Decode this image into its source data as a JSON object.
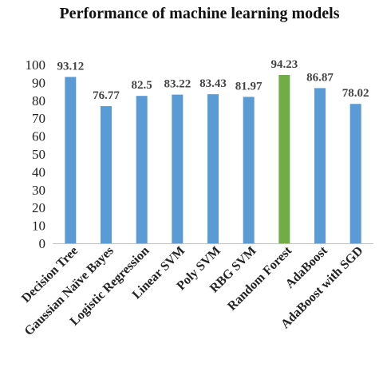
{
  "chart_data": {
    "type": "bar",
    "title": "Performance of machine learning models",
    "xlabel": "",
    "ylabel": "",
    "ylim": [
      0,
      100
    ],
    "yticks": [
      0,
      10,
      20,
      30,
      40,
      50,
      60,
      70,
      80,
      90,
      100
    ],
    "grid": false,
    "legend": "none",
    "categories": [
      "Decision Tree",
      "Gaussian Naïve Bayes",
      "Logistic Regression",
      "Linear SVM",
      "Poly SVM",
      "RBG SVM",
      "Random Forest",
      "AdaBoost",
      "AdaBoost with SGD"
    ],
    "values": [
      93.12,
      76.77,
      82.5,
      83.22,
      83.43,
      81.97,
      94.23,
      86.87,
      78.02
    ],
    "data_labels": [
      "93.12",
      "76.77",
      "82.5",
      "83.22",
      "83.43",
      "81.97",
      "94.23",
      "86.87",
      "78.02"
    ],
    "colors": {
      "default_bar": "#5B9BD5",
      "highlight_bar": "#70AD47",
      "highlight_category": "Random Forest",
      "axis": "#bfbfbf"
    }
  }
}
